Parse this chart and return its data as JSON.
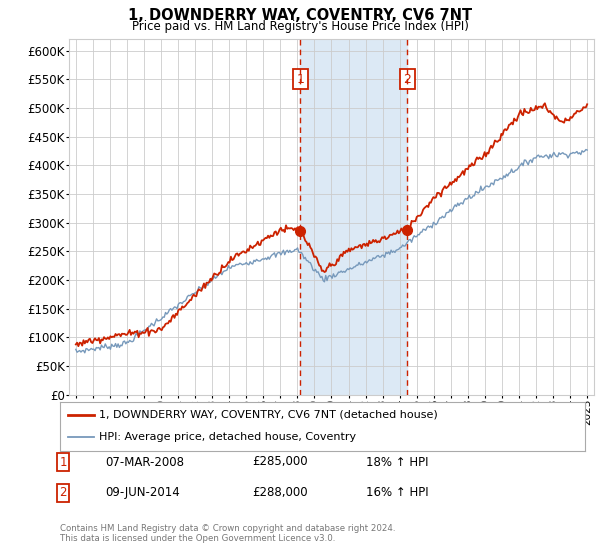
{
  "title": "1, DOWNDERRY WAY, COVENTRY, CV6 7NT",
  "subtitle": "Price paid vs. HM Land Registry's House Price Index (HPI)",
  "legend_label_red": "1, DOWNDERRY WAY, COVENTRY, CV6 7NT (detached house)",
  "legend_label_blue": "HPI: Average price, detached house, Coventry",
  "transaction1_date": "07-MAR-2008",
  "transaction1_price": "£285,000",
  "transaction1_hpi": "18% ↑ HPI",
  "transaction2_date": "09-JUN-2014",
  "transaction2_price": "£288,000",
  "transaction2_hpi": "16% ↑ HPI",
  "footer": "Contains HM Land Registry data © Crown copyright and database right 2024.\nThis data is licensed under the Open Government Licence v3.0.",
  "ylim": [
    0,
    620000
  ],
  "yticks": [
    0,
    50000,
    100000,
    150000,
    200000,
    250000,
    300000,
    350000,
    400000,
    450000,
    500000,
    550000,
    600000
  ],
  "vline1_year": 2008.18,
  "vline2_year": 2014.44,
  "sale1_price": 285000,
  "sale2_price": 288000,
  "shade_color": "#dce9f5",
  "red_color": "#cc2200",
  "blue_color": "#7799bb",
  "background_color": "#ffffff",
  "grid_color": "#cccccc"
}
